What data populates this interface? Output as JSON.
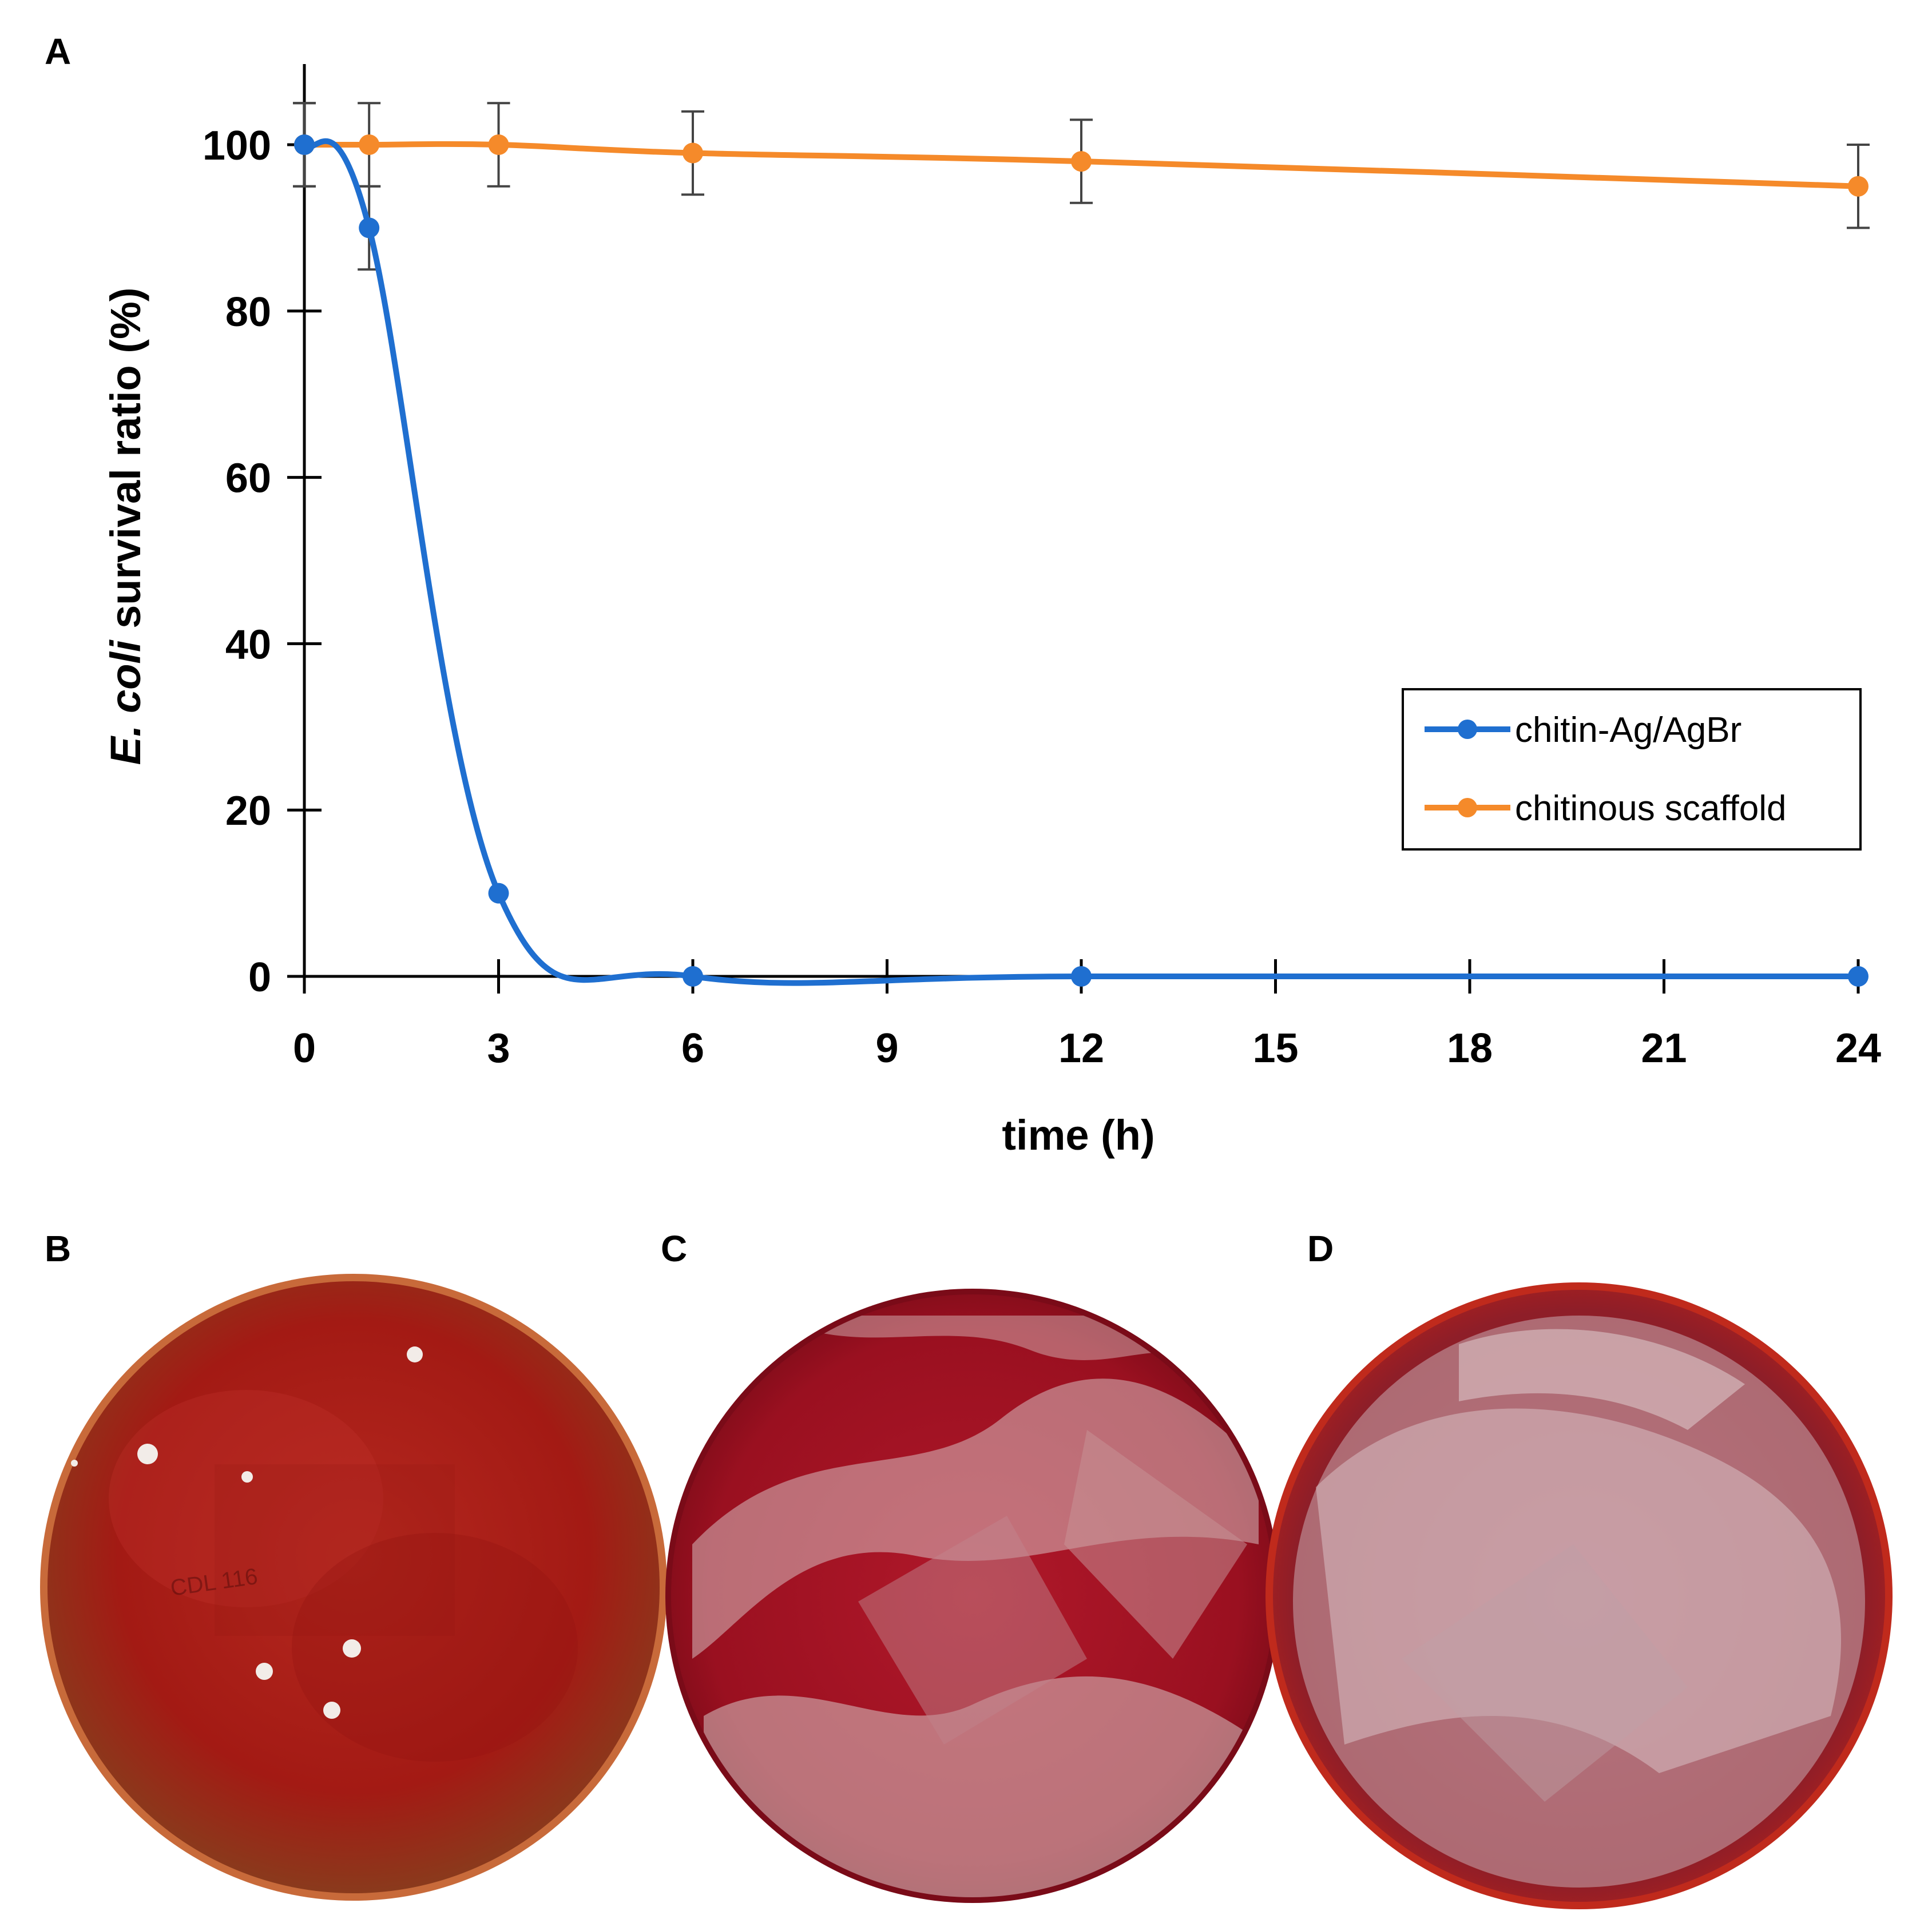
{
  "panels": {
    "a": "A",
    "b": "B",
    "c": "C",
    "d": "D"
  },
  "colors": {
    "series_blue": "#1f6fd0",
    "series_orange": "#f58a2a",
    "axis": "#000000",
    "errorbar": "#444444",
    "agar_red": "#a8141c",
    "agar_dark": "#7a0b10",
    "colony": "#f2ece8"
  },
  "chart_data": {
    "type": "line",
    "xlabel": "time (h)",
    "ylabel_italic": "E. coli",
    "ylabel_rest": " survival ratio (%)",
    "xlim": [
      0,
      24
    ],
    "ylim": [
      0,
      100
    ],
    "xticks": [
      0,
      3,
      6,
      9,
      12,
      15,
      18,
      21,
      24
    ],
    "yticks": [
      0,
      20,
      40,
      60,
      80,
      100
    ],
    "legend_position": "center-right",
    "series": [
      {
        "name": "chitin-Ag/AgBr",
        "color": "#1f6fd0",
        "x": [
          0,
          1,
          3,
          6,
          12,
          24
        ],
        "y": [
          100,
          90,
          10,
          0,
          0,
          0
        ],
        "err": [
          5,
          5,
          0,
          0,
          0,
          0
        ]
      },
      {
        "name": "chitinous scaffold",
        "color": "#f58a2a",
        "x": [
          0,
          1,
          3,
          6,
          12,
          24
        ],
        "y": [
          100,
          100,
          100,
          99,
          98,
          95
        ],
        "err": [
          5,
          5,
          5,
          5,
          5,
          5
        ]
      }
    ]
  },
  "plates": [
    {
      "panel": "B",
      "description_icon": "petri-dish-few-colonies-icon"
    },
    {
      "panel": "C",
      "description_icon": "petri-dish-dense-growth-icon"
    },
    {
      "panel": "D",
      "description_icon": "petri-dish-lawn-growth-icon"
    }
  ]
}
